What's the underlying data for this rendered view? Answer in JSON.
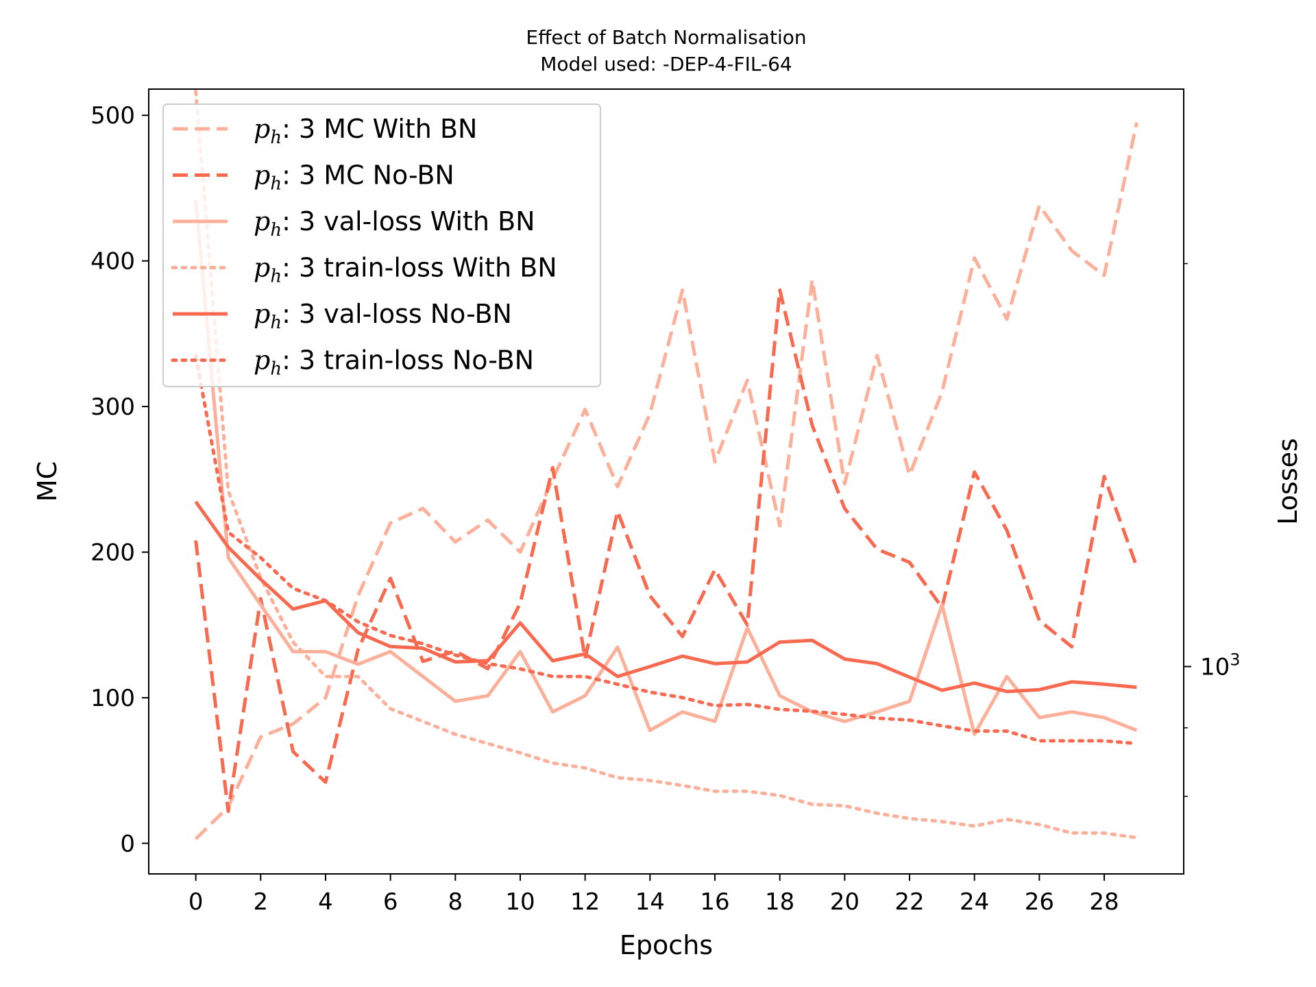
{
  "chart_data": {
    "type": "line",
    "title": "Effect of Batch Normalisation",
    "subtitle": "Model used: -DEP-4-FIL-64",
    "xlabel": "Epochs",
    "ylabel": "MC",
    "y2label": "Losses",
    "xlim": [
      -1.45,
      30.45
    ],
    "ylim": [
      -21,
      518
    ],
    "xticks": [
      0,
      2,
      4,
      6,
      8,
      10,
      12,
      14,
      16,
      18,
      20,
      22,
      24,
      26,
      28
    ],
    "xtick_labels": [
      "0",
      "2",
      "4",
      "6",
      "8",
      "10",
      "12",
      "14",
      "16",
      "18",
      "20",
      "22",
      "24",
      "26",
      "28"
    ],
    "yticks": [
      0,
      100,
      200,
      300,
      400,
      500
    ],
    "ytick_labels": [
      "0",
      "100",
      "200",
      "300",
      "400",
      "500"
    ],
    "y2_scale": "log",
    "y2lim": [
      700,
      2700
    ],
    "y2_major_ticks": [
      1000
    ],
    "y2_major_labels": [
      {
        "base": "10",
        "exp": "3"
      }
    ],
    "y2_minor_ticks": [
      800,
      900,
      2000,
      3000,
      4000,
      5000,
      6000,
      7000,
      8000,
      9000
    ],
    "grid": false,
    "legend_placement": "top-left",
    "x": [
      0,
      1,
      2,
      3,
      4,
      5,
      6,
      7,
      8,
      9,
      10,
      11,
      12,
      13,
      14,
      15,
      16,
      17,
      18,
      19,
      20,
      21,
      22,
      23,
      24,
      25,
      26,
      27,
      28,
      29
    ],
    "series": [
      {
        "label": "3 MC With BN",
        "axis": "left",
        "color": "#fcb09a",
        "style": "dashed",
        "values": [
          3,
          25,
          73,
          82,
          100,
          170,
          220,
          230,
          207,
          222,
          200,
          250,
          298,
          245,
          295,
          380,
          262,
          318,
          218,
          387,
          247,
          335,
          253,
          310,
          402,
          360,
          438,
          407,
          390,
          495
        ]
      },
      {
        "label": "3 MC No-BN",
        "axis": "left",
        "color": "#f86a50",
        "style": "dashed",
        "values": [
          208,
          22,
          168,
          63,
          42,
          133,
          182,
          125,
          132,
          120,
          165,
          258,
          127,
          228,
          170,
          142,
          188,
          150,
          380,
          287,
          230,
          202,
          193,
          162,
          255,
          215,
          153,
          135,
          252,
          190
        ]
      },
      {
        "label": "3 val-loss With BN",
        "axis": "right",
        "color": "#fcb09a",
        "style": "solid",
        "values": [
          2232,
          1206,
          1112,
          1026,
          1026,
          1004,
          1026,
          983,
          942,
          951,
          1026,
          925,
          951,
          1034,
          896,
          925,
          910,
          1069,
          951,
          925,
          910,
          925,
          942,
          1112,
          890,
          983,
          916,
          925,
          916,
          896
        ]
      },
      {
        "label": "3 train-loss With BN",
        "axis": "right",
        "color": "#fcb09a",
        "style": "dotted",
        "values": [
          2690,
          1353,
          1165,
          1043,
          983,
          983,
          930,
          910,
          890,
          876,
          862,
          847,
          840,
          826,
          822,
          815,
          807,
          807,
          801,
          789,
          787,
          777,
          770,
          766,
          760,
          769,
          762,
          751,
          751,
          745
        ]
      },
      {
        "label": "3 val-loss No-BN",
        "axis": "right",
        "color": "#f86a50",
        "style": "solid",
        "values": [
          1328,
          1228,
          1162,
          1104,
          1120,
          1060,
          1035,
          1032,
          1008,
          1010,
          1078,
          1010,
          1022,
          983,
          1000,
          1018,
          1005,
          1008,
          1043,
          1046,
          1013,
          1005,
          982,
          960,
          972,
          958,
          961,
          974,
          970,
          965
        ]
      },
      {
        "label": "3 train-loss No-BN",
        "axis": "right",
        "color": "#f86a50",
        "style": "dotted",
        "values": [
          1707,
          1260,
          1206,
          1144,
          1120,
          1080,
          1055,
          1040,
          1020,
          1005,
          996,
          983,
          983,
          970,
          957,
          948,
          935,
          937,
          929,
          926,
          921,
          915,
          912,
          903,
          895,
          895,
          880,
          880,
          880,
          876
        ]
      }
    ]
  }
}
